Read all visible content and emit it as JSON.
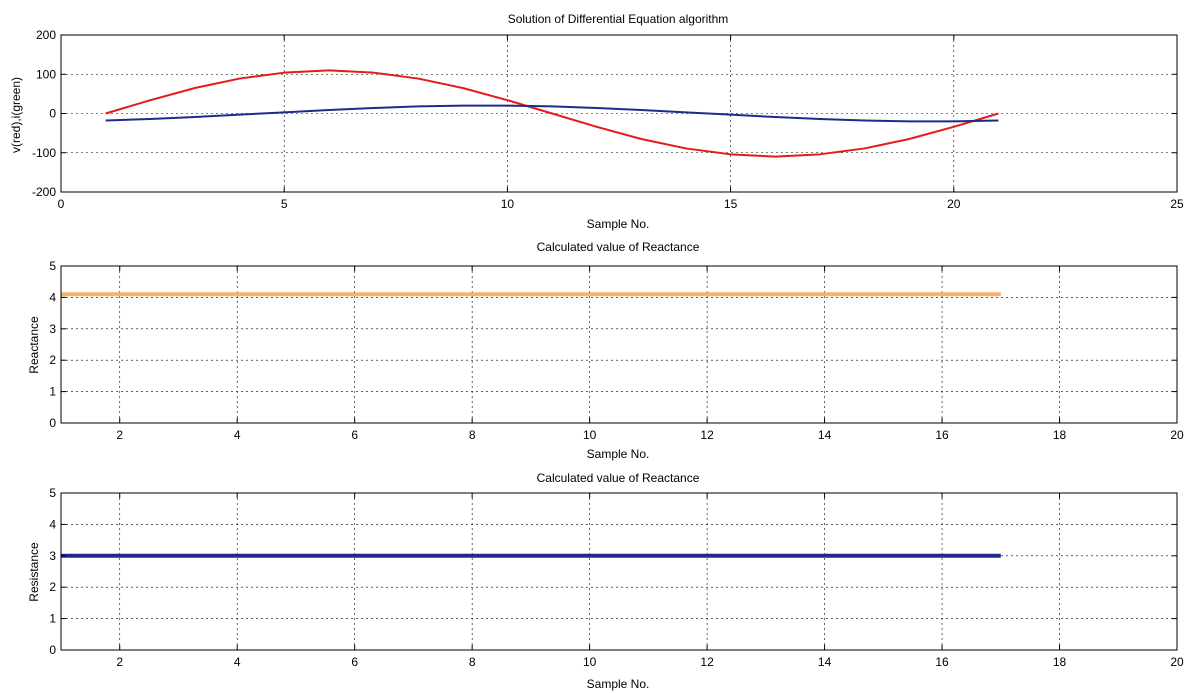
{
  "chart_data": [
    {
      "type": "line",
      "title": "Solution of Differential Equation algorithm",
      "xlabel": "Sample No.",
      "ylabel": "v(red),i(green)",
      "xlim": [
        0,
        25
      ],
      "ylim": [
        -200,
        200
      ],
      "xticks": [
        0,
        5,
        10,
        15,
        20,
        25
      ],
      "yticks": [
        -200,
        -100,
        0,
        100,
        200
      ],
      "grid": true,
      "x": [
        1,
        2,
        3,
        4,
        5,
        6,
        7,
        8,
        9,
        10,
        11,
        12,
        13,
        14,
        15,
        16,
        17,
        18,
        19,
        20,
        21
      ],
      "series": [
        {
          "color": "#e41a1c",
          "values": [
            0,
            34,
            65,
            89,
            104,
            110,
            104,
            89,
            65,
            34,
            0,
            -34,
            -65,
            -89,
            -104,
            -110,
            -104,
            -89,
            -65,
            -34,
            0
          ]
        },
        {
          "color": "#1f2a8a",
          "values": [
            -18,
            -14,
            -9,
            -3,
            3,
            9,
            14,
            18,
            20,
            20,
            18,
            14,
            9,
            3,
            -3,
            -9,
            -14,
            -18,
            -20,
            -20,
            -18
          ]
        }
      ]
    },
    {
      "type": "line",
      "title": "Calculated value of Reactance",
      "xlabel": "Sample No.",
      "ylabel": "Reactance",
      "xlim": [
        1,
        20
      ],
      "ylim": [
        0,
        5
      ],
      "xticks": [
        2,
        4,
        6,
        8,
        10,
        12,
        14,
        16,
        18,
        20
      ],
      "yticks": [
        0,
        1,
        2,
        3,
        4,
        5
      ],
      "grid": true,
      "x": [
        1,
        2,
        3,
        4,
        5,
        6,
        7,
        8,
        9,
        10,
        11,
        12,
        13,
        14,
        15,
        16,
        17
      ],
      "series": [
        {
          "color": "#f6b26b",
          "values": [
            4.1,
            4.1,
            4.1,
            4.1,
            4.1,
            4.1,
            4.1,
            4.1,
            4.1,
            4.1,
            4.1,
            4.1,
            4.1,
            4.1,
            4.1,
            4.1,
            4.1
          ]
        }
      ]
    },
    {
      "type": "line",
      "title": "Calculated value of Reactance",
      "xlabel": "Sample No.",
      "ylabel": "Resistance",
      "xlim": [
        1,
        20
      ],
      "ylim": [
        0,
        5
      ],
      "xticks": [
        2,
        4,
        6,
        8,
        10,
        12,
        14,
        16,
        18,
        20
      ],
      "yticks": [
        0,
        1,
        2,
        3,
        4,
        5
      ],
      "grid": true,
      "x": [
        1,
        2,
        3,
        4,
        5,
        6,
        7,
        8,
        9,
        10,
        11,
        12,
        13,
        14,
        15,
        16,
        17
      ],
      "series": [
        {
          "color": "#1f2a8a",
          "values": [
            3,
            3,
            3,
            3,
            3,
            3,
            3,
            3,
            3,
            3,
            3,
            3,
            3,
            3,
            3,
            3,
            3
          ]
        }
      ]
    }
  ]
}
